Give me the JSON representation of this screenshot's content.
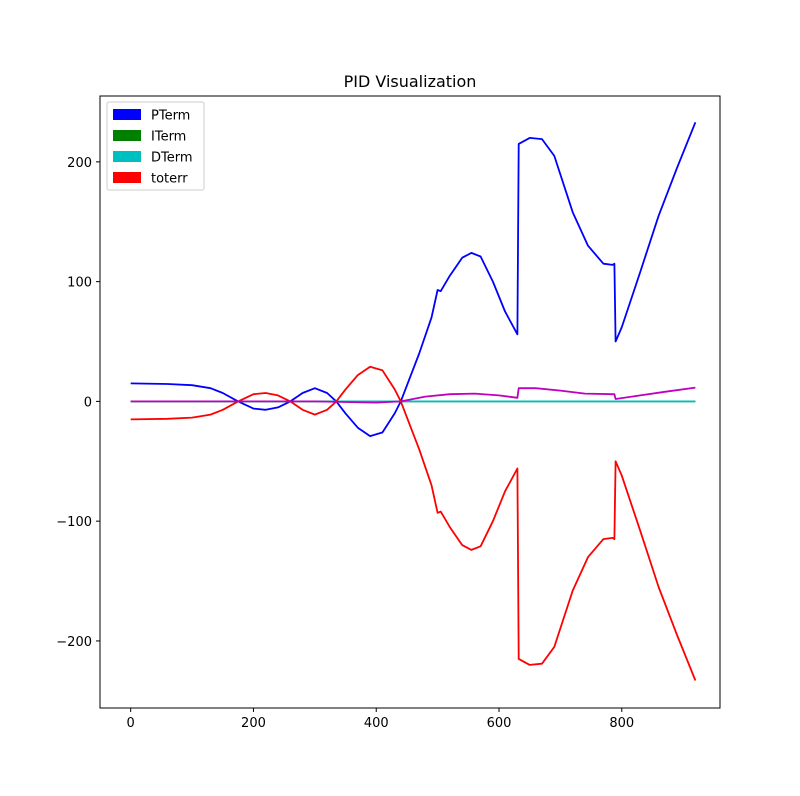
{
  "chart_data": {
    "type": "line",
    "title": "PID Visualization",
    "xlabel": "",
    "ylabel": "",
    "xlim": [
      -50,
      960
    ],
    "ylim": [
      -256,
      255
    ],
    "x_ticks": [
      0,
      200,
      400,
      600,
      800
    ],
    "y_ticks": [
      -200,
      -100,
      0,
      100,
      200
    ],
    "grid": false,
    "legend_position": "top-left",
    "legend": [
      {
        "label": "PTerm",
        "color": "#0000ff"
      },
      {
        "label": "ITerm",
        "color": "#008000"
      },
      {
        "label": "DTerm",
        "color": "#00bfbf"
      },
      {
        "label": "toterr",
        "color": "#ff0000"
      }
    ],
    "series": [
      {
        "name": "PTerm",
        "color": "#0000ff",
        "points": [
          [
            0,
            15
          ],
          [
            60,
            14.5
          ],
          [
            100,
            13.5
          ],
          [
            130,
            11
          ],
          [
            150,
            7
          ],
          [
            175,
            0
          ],
          [
            200,
            -6
          ],
          [
            220,
            -7
          ],
          [
            240,
            -5
          ],
          [
            260,
            0
          ],
          [
            280,
            7
          ],
          [
            300,
            11
          ],
          [
            320,
            7
          ],
          [
            335,
            0
          ],
          [
            350,
            -10
          ],
          [
            370,
            -22
          ],
          [
            390,
            -29
          ],
          [
            410,
            -26
          ],
          [
            430,
            -10
          ],
          [
            440,
            0
          ],
          [
            455,
            20
          ],
          [
            470,
            40
          ],
          [
            490,
            70
          ],
          [
            500,
            93
          ],
          [
            505,
            92
          ],
          [
            520,
            105
          ],
          [
            540,
            120
          ],
          [
            555,
            124
          ],
          [
            570,
            121
          ],
          [
            590,
            100
          ],
          [
            610,
            75
          ],
          [
            630,
            56
          ],
          [
            632,
            215
          ],
          [
            650,
            220
          ],
          [
            670,
            219
          ],
          [
            690,
            205
          ],
          [
            720,
            158
          ],
          [
            745,
            130
          ],
          [
            770,
            115
          ],
          [
            785,
            114
          ],
          [
            788,
            115
          ],
          [
            790,
            50
          ],
          [
            800,
            62
          ],
          [
            830,
            108
          ],
          [
            860,
            155
          ],
          [
            890,
            195
          ],
          [
            920,
            233
          ]
        ]
      },
      {
        "name": "ITerm",
        "color": "#008000",
        "points": [
          [
            0,
            0
          ],
          [
            920,
            0
          ]
        ]
      },
      {
        "name": "DTerm",
        "color": "#00bfbf",
        "points": [
          [
            0,
            0
          ],
          [
            920,
            0
          ]
        ]
      },
      {
        "name": "toterr",
        "color": "#ff0000",
        "points": [
          [
            0,
            -15
          ],
          [
            60,
            -14.5
          ],
          [
            100,
            -13.5
          ],
          [
            130,
            -11
          ],
          [
            150,
            -7
          ],
          [
            175,
            0
          ],
          [
            200,
            6
          ],
          [
            220,
            7
          ],
          [
            240,
            5
          ],
          [
            260,
            0
          ],
          [
            280,
            -7
          ],
          [
            300,
            -11
          ],
          [
            320,
            -7
          ],
          [
            335,
            0
          ],
          [
            350,
            10
          ],
          [
            370,
            22
          ],
          [
            390,
            29
          ],
          [
            410,
            26
          ],
          [
            430,
            10
          ],
          [
            440,
            0
          ],
          [
            455,
            -20
          ],
          [
            470,
            -40
          ],
          [
            490,
            -70
          ],
          [
            500,
            -93
          ],
          [
            505,
            -92
          ],
          [
            520,
            -105
          ],
          [
            540,
            -120
          ],
          [
            555,
            -124
          ],
          [
            570,
            -121
          ],
          [
            590,
            -100
          ],
          [
            610,
            -75
          ],
          [
            630,
            -56
          ],
          [
            632,
            -215
          ],
          [
            650,
            -220
          ],
          [
            670,
            -219
          ],
          [
            690,
            -205
          ],
          [
            720,
            -158
          ],
          [
            745,
            -130
          ],
          [
            770,
            -115
          ],
          [
            785,
            -114
          ],
          [
            788,
            -115
          ],
          [
            790,
            -50
          ],
          [
            800,
            -62
          ],
          [
            830,
            -108
          ],
          [
            860,
            -155
          ],
          [
            890,
            -195
          ],
          [
            920,
            -233
          ]
        ]
      },
      {
        "name": "",
        "color": "#bf00bf",
        "points": [
          [
            0,
            0
          ],
          [
            200,
            0
          ],
          [
            300,
            0
          ],
          [
            400,
            -1
          ],
          [
            440,
            0
          ],
          [
            480,
            4
          ],
          [
            520,
            6
          ],
          [
            560,
            6.5
          ],
          [
            600,
            5
          ],
          [
            630,
            3
          ],
          [
            632,
            11
          ],
          [
            660,
            11
          ],
          [
            700,
            9
          ],
          [
            740,
            6.5
          ],
          [
            785,
            6
          ],
          [
            788,
            6
          ],
          [
            790,
            2
          ],
          [
            830,
            5
          ],
          [
            870,
            8
          ],
          [
            920,
            11.5
          ]
        ]
      }
    ]
  }
}
